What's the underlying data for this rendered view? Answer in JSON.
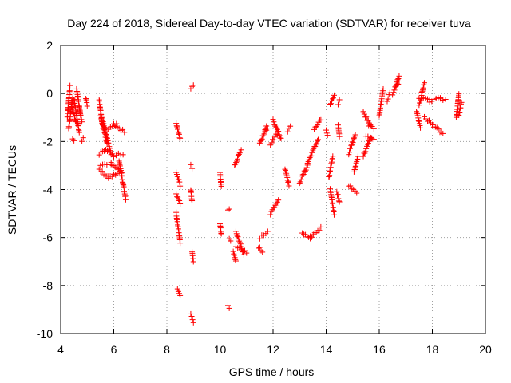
{
  "chart_data": {
    "type": "scatter",
    "title": "Day 224 of 2018, Sidereal Day-to-day VTEC variation (SDTVAR) for receiver tuva",
    "xlabel": "GPS time / hours",
    "ylabel": "SDTVAR / TECUs",
    "xlim": [
      4,
      20
    ],
    "ylim": [
      -10,
      2
    ],
    "xticks": [
      4,
      6,
      8,
      10,
      12,
      14,
      16,
      18,
      20
    ],
    "yticks": [
      -10,
      -8,
      -6,
      -4,
      -2,
      0,
      2
    ],
    "xtick_labels": [
      "4",
      "6",
      "8",
      "10",
      "12",
      "14",
      "16",
      "18",
      "20"
    ],
    "ytick_labels": [
      "-10",
      "-8",
      "-6",
      "-4",
      "-2",
      "0",
      "2"
    ],
    "grid": true,
    "marker": "+",
    "color": "#ff0000",
    "segments": [
      [
        4.25,
        -1.0,
        4.35,
        0.3
      ],
      [
        4.3,
        -1.5,
        4.45,
        -0.2
      ],
      [
        4.4,
        -0.5,
        4.6,
        -1.3
      ],
      [
        4.5,
        -0.2,
        4.7,
        -1.6
      ],
      [
        4.6,
        0.2,
        4.75,
        -0.9
      ],
      [
        4.7,
        -0.6,
        4.8,
        -1.2
      ],
      [
        4.95,
        -0.2,
        5.0,
        -0.5
      ],
      [
        5.45,
        -0.3,
        5.6,
        -1.5
      ],
      [
        5.5,
        -0.9,
        5.75,
        -2.1
      ],
      [
        5.6,
        -1.2,
        5.9,
        -2.5
      ],
      [
        5.8,
        -1.5,
        6.1,
        -1.3
      ],
      [
        6.0,
        -1.3,
        6.4,
        -1.6
      ],
      [
        5.45,
        -2.5,
        5.7,
        -2.3
      ],
      [
        5.7,
        -2.3,
        6.0,
        -2.6
      ],
      [
        6.0,
        -2.6,
        6.35,
        -2.5
      ],
      [
        5.45,
        -3.2,
        5.8,
        -3.5
      ],
      [
        5.8,
        -3.5,
        6.2,
        -3.3
      ],
      [
        5.5,
        -3.0,
        5.9,
        -2.9
      ],
      [
        5.9,
        -2.9,
        6.3,
        -3.3
      ],
      [
        6.2,
        -2.8,
        6.45,
        -4.4
      ],
      [
        8.35,
        -1.3,
        8.5,
        -1.9
      ],
      [
        8.35,
        -3.3,
        8.5,
        -3.8
      ],
      [
        8.35,
        -4.2,
        8.5,
        -4.6
      ],
      [
        8.35,
        -5.0,
        8.5,
        -6.2
      ],
      [
        8.4,
        -8.1,
        8.5,
        -8.4
      ],
      [
        8.9,
        0.2,
        9.0,
        0.4
      ],
      [
        8.9,
        -4.0,
        8.95,
        -4.5
      ],
      [
        8.95,
        -6.6,
        9.0,
        -7.0
      ],
      [
        8.9,
        -9.2,
        9.0,
        -9.5
      ],
      [
        10.0,
        -3.3,
        10.05,
        -3.9
      ],
      [
        10.0,
        -5.4,
        10.05,
        -5.9
      ],
      [
        10.5,
        -6.6,
        10.6,
        -7.0
      ],
      [
        10.55,
        -3.0,
        10.8,
        -2.3
      ],
      [
        10.6,
        -5.8,
        10.9,
        -6.7
      ],
      [
        10.6,
        -6.4,
        11.0,
        -6.6
      ],
      [
        11.45,
        -6.4,
        11.6,
        -6.6
      ],
      [
        11.5,
        -6.0,
        11.8,
        -5.8
      ],
      [
        11.5,
        -2.1,
        11.75,
        -1.4
      ],
      [
        11.7,
        -1.6,
        11.8,
        -1.4
      ],
      [
        11.9,
        -5.0,
        12.2,
        -4.4
      ],
      [
        11.9,
        -2.1,
        12.2,
        -1.6
      ],
      [
        12.0,
        -1.1,
        12.3,
        -1.9
      ],
      [
        12.45,
        -3.1,
        12.6,
        -3.8
      ],
      [
        12.55,
        -1.6,
        12.65,
        -1.4
      ],
      [
        13.0,
        -3.7,
        13.3,
        -3.0
      ],
      [
        13.3,
        -2.9,
        13.7,
        -1.9
      ],
      [
        13.55,
        -1.5,
        13.8,
        -1.1
      ],
      [
        13.1,
        -5.8,
        13.4,
        -6.1
      ],
      [
        13.4,
        -6.0,
        13.8,
        -5.6
      ],
      [
        14.0,
        -1.5,
        14.05,
        -1.7
      ],
      [
        14.1,
        -3.5,
        14.25,
        -2.6
      ],
      [
        14.15,
        -4.0,
        14.3,
        -5.0
      ],
      [
        14.15,
        -0.5,
        14.3,
        -0.1
      ],
      [
        14.4,
        -4.1,
        14.5,
        -4.5
      ],
      [
        14.45,
        -1.3,
        14.5,
        -1.8
      ],
      [
        14.45,
        -0.4,
        14.5,
        -0.3
      ],
      [
        14.85,
        -3.8,
        15.15,
        -4.1
      ],
      [
        14.85,
        -2.5,
        15.1,
        -1.7
      ],
      [
        15.05,
        -3.3,
        15.2,
        -2.6
      ],
      [
        15.4,
        -2.6,
        15.7,
        -1.8
      ],
      [
        15.5,
        -1.8,
        15.8,
        -1.9
      ],
      [
        15.4,
        -0.8,
        15.7,
        -1.4
      ],
      [
        15.6,
        -1.3,
        15.8,
        -1.5
      ],
      [
        16.0,
        -0.9,
        16.15,
        0.2
      ],
      [
        16.3,
        -0.3,
        16.4,
        0.0
      ],
      [
        16.6,
        0.3,
        16.75,
        0.7
      ],
      [
        16.5,
        0.0,
        16.75,
        0.5
      ],
      [
        17.5,
        -0.2,
        17.9,
        -0.3
      ],
      [
        17.9,
        -0.3,
        18.3,
        -0.2
      ],
      [
        18.3,
        -0.2,
        18.5,
        -0.3
      ],
      [
        17.5,
        -0.5,
        17.6,
        -0.1
      ],
      [
        17.6,
        0.0,
        17.7,
        0.4
      ],
      [
        17.7,
        -1.0,
        18.0,
        -1.3
      ],
      [
        18.0,
        -1.3,
        18.4,
        -1.7
      ],
      [
        17.4,
        -0.7,
        17.55,
        -1.4
      ],
      [
        18.9,
        -1.0,
        19.0,
        0.0
      ],
      [
        19.0,
        -0.9,
        19.1,
        -0.4
      ],
      [
        4.45,
        -1.9,
        4.5,
        -2.0
      ],
      [
        4.8,
        -2.0,
        4.85,
        -1.9
      ],
      [
        10.3,
        -4.9,
        10.35,
        -4.8
      ],
      [
        10.3,
        -8.8,
        10.35,
        -8.9
      ],
      [
        10.35,
        -6.0,
        10.4,
        -6.1
      ],
      [
        8.9,
        -3.0,
        8.95,
        -3.1
      ]
    ]
  }
}
